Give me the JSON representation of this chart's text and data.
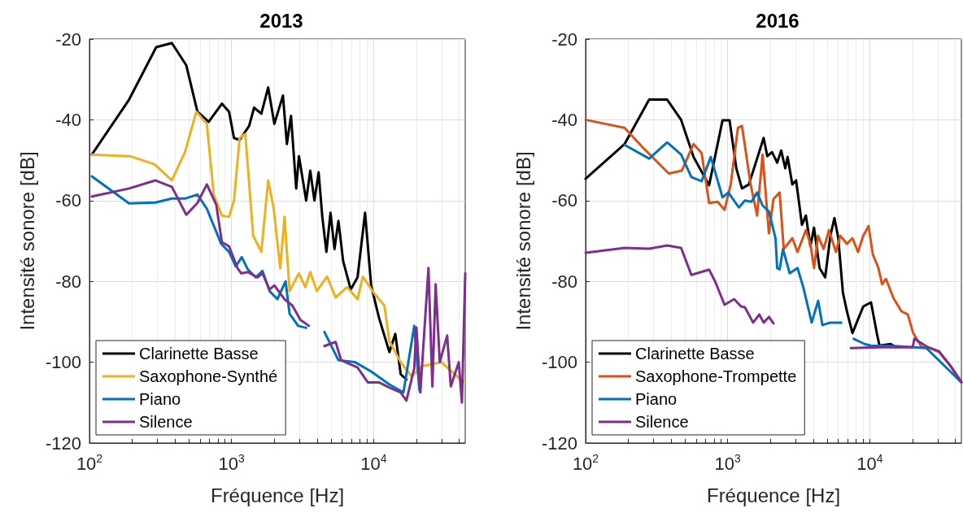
{
  "chart_data": [
    {
      "type": "line",
      "title": "2013",
      "xlabel": "Fréquence [Hz]",
      "ylabel": "Intensité sonore [dB]",
      "log": "x",
      "grid": true,
      "legend": "bottom left",
      "xlim": [
        100,
        44100
      ],
      "ylim": [
        -120,
        -20
      ],
      "xticks": [
        {
          "value": 100,
          "label": "10$^{2}$"
        },
        {
          "value": 200,
          "label": null
        },
        {
          "value": 300,
          "label": null
        },
        {
          "value": 400,
          "label": null
        },
        {
          "value": 500,
          "label": null
        },
        {
          "value": 600,
          "label": null
        },
        {
          "value": 700,
          "label": null
        },
        {
          "value": 800,
          "label": null
        },
        {
          "value": 900,
          "label": null
        },
        {
          "value": 1000,
          "label": "10$^{3}$"
        },
        {
          "value": 2000,
          "label": null
        },
        {
          "value": 3000,
          "label": null
        },
        {
          "value": 4000,
          "label": null
        },
        {
          "value": 5000,
          "label": null
        },
        {
          "value": 6000,
          "label": null
        },
        {
          "value": 7000,
          "label": null
        },
        {
          "value": 8000,
          "label": null
        },
        {
          "value": 9000,
          "label": null
        },
        {
          "value": 10000,
          "label": "10$^{4}$"
        },
        {
          "value": 20000,
          "label": null
        },
        {
          "value": 30000,
          "label": null
        },
        {
          "value": 40000,
          "label": null
        }
      ],
      "yticks": [
        -120,
        -100,
        -80,
        -60,
        -40,
        -20
      ],
      "series": [
        {
          "name": "Clarinette Basse",
          "color": "#000000",
          "x": [
            104,
            190,
            295,
            380,
            480,
            575,
            690,
            855,
            960,
            1040,
            1140,
            1330,
            1440,
            1620,
            1810,
            2000,
            2300,
            2450,
            2620,
            2850,
            2980,
            3350,
            3580,
            3830,
            4100,
            4350,
            4650,
            4970,
            5300,
            5650,
            6100,
            6900,
            7700,
            8700,
            9600,
            10900,
            12900,
            14200,
            15500,
            17000
          ],
          "values": [
            -48.6,
            -35,
            -22,
            -21,
            -26.5,
            -38,
            -40.5,
            -36,
            -38,
            -44.5,
            -45,
            -41.5,
            -37,
            -38.5,
            -32,
            -41,
            -34,
            -46,
            -39,
            -57,
            -49,
            -60,
            -52.6,
            -60,
            -53,
            -64,
            -72.7,
            -63,
            -72,
            -65,
            -75,
            -82,
            -79,
            -63,
            -81,
            -89,
            -97.5,
            -93,
            -103,
            -104.3
          ]
        },
        {
          "name": "Saxophone-Synthé",
          "color": "#edb120",
          "x": [
            104,
            193,
            287,
            380,
            470,
            565,
            670,
            750,
            855,
            960,
            1040,
            1140,
            1250,
            1420,
            1620,
            1810,
            1980,
            2200,
            2360,
            2560,
            2980,
            3300,
            3580,
            3980,
            4700,
            5400,
            6500,
            7700,
            8400,
            10000,
            11900,
            12900,
            15500,
            18500,
            22000,
            30000,
            40000,
            44100
          ],
          "values": [
            -48.6,
            -49,
            -51,
            -55,
            -48,
            -38,
            -41,
            -58.6,
            -63.7,
            -64,
            -60,
            -44.5,
            -43.5,
            -68.7,
            -72.7,
            -55,
            -62,
            -76.7,
            -64,
            -82.4,
            -78,
            -81.4,
            -77.7,
            -82.4,
            -78.8,
            -84,
            -81.4,
            -84.4,
            -78.8,
            -82.8,
            -86,
            -94.8,
            -100,
            -103.5,
            -101,
            -100,
            -104,
            -105
          ]
        },
        {
          "name": "Piano",
          "color": "#0072bd",
          "x": [
            104,
            190,
            290,
            380,
            470,
            575,
            670,
            845,
            960,
            1070,
            1180,
            1300,
            1480,
            1650,
            1850,
            2100,
            2400,
            2560,
            2940,
            3350,
            4000,
            4500,
            5650,
            7400,
            9600,
            12900,
            16200,
            19300,
            21000
          ],
          "values": [
            -54,
            -60.7,
            -60.5,
            -59.5,
            -59.5,
            -58.5,
            -62,
            -70.7,
            -72.7,
            -76.3,
            -74,
            -77,
            -79,
            -77.4,
            -82.4,
            -84.4,
            -80,
            -88,
            -91,
            -91.5,
            null,
            -92.5,
            -99.5,
            -100,
            -102.3,
            -105.5,
            -107.5,
            -91,
            -107
          ]
        },
        {
          "name": "Silence",
          "color": "#7e2f8e",
          "x": [
            104,
            190,
            290,
            380,
            480,
            575,
            670,
            780,
            855,
            960,
            1100,
            1170,
            1300,
            1520,
            1650,
            1850,
            2000,
            2360,
            2680,
            3050,
            3500,
            4000,
            4500,
            5400,
            5900,
            7700,
            9100,
            10900,
            12900,
            15500,
            17000,
            19300,
            20000,
            21300,
            24300,
            25900,
            27300,
            29200,
            32900,
            34900,
            39700,
            41800,
            44100
          ],
          "values": [
            -59,
            -57,
            -55,
            -56.6,
            -63.5,
            -60.6,
            -56,
            -61,
            -70.3,
            -71.3,
            -76.7,
            -78,
            -77.7,
            -79,
            -78,
            -82,
            -81,
            -84.4,
            -86,
            -89.5,
            -91,
            null,
            -96,
            -95,
            -99.5,
            -101.3,
            -105,
            -105,
            -106.3,
            -107.5,
            -109.5,
            -101.5,
            -91.4,
            -107.5,
            -76.7,
            -106,
            -80.7,
            -100,
            -93.4,
            -106,
            -100,
            -110,
            -78
          ]
        }
      ]
    },
    {
      "type": "line",
      "title": "2016",
      "xlabel": "Fréquence [Hz]",
      "ylabel": "Intensité sonore [dB]",
      "log": "x",
      "grid": true,
      "legend": "bottom left",
      "xlim": [
        100,
        44100
      ],
      "ylim": [
        -120,
        -20
      ],
      "xticks": [
        {
          "value": 100,
          "label": "10$^{2}$"
        },
        {
          "value": 200,
          "label": null
        },
        {
          "value": 300,
          "label": null
        },
        {
          "value": 400,
          "label": null
        },
        {
          "value": 500,
          "label": null
        },
        {
          "value": 600,
          "label": null
        },
        {
          "value": 700,
          "label": null
        },
        {
          "value": 800,
          "label": null
        },
        {
          "value": 900,
          "label": null
        },
        {
          "value": 1000,
          "label": "10$^{3}$"
        },
        {
          "value": 2000,
          "label": null
        },
        {
          "value": 3000,
          "label": null
        },
        {
          "value": 4000,
          "label": null
        },
        {
          "value": 5000,
          "label": null
        },
        {
          "value": 6000,
          "label": null
        },
        {
          "value": 7000,
          "label": null
        },
        {
          "value": 8000,
          "label": null
        },
        {
          "value": 9000,
          "label": null
        },
        {
          "value": 10000,
          "label": "10$^{4}$"
        },
        {
          "value": 20000,
          "label": null
        },
        {
          "value": 30000,
          "label": null
        },
        {
          "value": 40000,
          "label": null
        }
      ],
      "yticks": [
        -120,
        -100,
        -80,
        -60,
        -40,
        -20
      ],
      "series": [
        {
          "name": "Clarinette Basse",
          "color": "#000000",
          "x": [
            100,
            188,
            280,
            375,
            470,
            575,
            740,
            920,
            1030,
            1150,
            1260,
            1410,
            1790,
            1900,
            2050,
            2230,
            2380,
            2540,
            2640,
            2850,
            3030,
            3330,
            3550,
            3820,
            4050,
            4430,
            4850,
            5280,
            5640,
            6000,
            6470,
            6900,
            7550,
            8260,
            9000,
            10200,
            11200,
            11700,
            14000,
            15300
          ],
          "values": [
            -54.6,
            -46,
            -35,
            -35,
            -40,
            -49.2,
            -56.2,
            -40.1,
            -40.1,
            -52,
            -57,
            -56,
            -44.5,
            -49,
            -48,
            -50.6,
            -47.6,
            -52,
            -49.2,
            -56,
            -55,
            -66,
            -63.7,
            -71.3,
            -66.7,
            -76.7,
            -79,
            -68.7,
            -64.3,
            -69.3,
            -82.8,
            -87.4,
            -92.8,
            -89.4,
            -86.2,
            -85.2,
            -92.8,
            -95.9,
            -95.5,
            -96.3
          ]
        },
        {
          "name": "Saxophone-Trompette",
          "color": "#d95319",
          "x": [
            100,
            188,
            260,
            385,
            475,
            575,
            655,
            740,
            850,
            950,
            1050,
            1180,
            1260,
            1450,
            1610,
            1760,
            1950,
            2100,
            2320,
            2480,
            2850,
            3100,
            3550,
            3820,
            4050,
            4330,
            4730,
            5160,
            5770,
            6200,
            6900,
            7550,
            8260,
            9000,
            9800,
            10500,
            11500,
            12200,
            13000,
            14700,
            16700,
            18500,
            20200,
            23200,
            25600,
            30700,
            37000,
            44100
          ],
          "values": [
            -40,
            -42,
            -47.3,
            -53.3,
            -52.6,
            -46,
            -48.2,
            -60.6,
            -60.3,
            -62.3,
            -56,
            -42,
            -41.5,
            -56,
            -63.7,
            -48.6,
            -68.1,
            -59.6,
            -58,
            -72,
            -69.3,
            -72.7,
            -67.3,
            -70.7,
            -76.7,
            -68.7,
            -72,
            -67.3,
            -72.7,
            -68.7,
            -70.7,
            -69.3,
            -72.7,
            -68.7,
            -66.3,
            -73.3,
            -76.7,
            -80.7,
            -79.4,
            -84.2,
            -87.4,
            -88.2,
            -92.8,
            -96.3,
            -96.3,
            -97.5,
            -101,
            -105
          ]
        },
        {
          "name": "Piano",
          "color": "#0072bd",
          "x": [
            188,
            280,
            375,
            470,
            555,
            655,
            760,
            920,
            1010,
            1200,
            1320,
            1470,
            1610,
            1760,
            1950,
            2170,
            2230,
            2320,
            2450,
            2730,
            3100,
            3400,
            3900,
            4330,
            4640,
            5280,
            6300,
            7000,
            7700,
            9200,
            10200,
            15000,
            25000,
            44100
          ],
          "values": [
            -46.2,
            -49.6,
            -45.6,
            -48.6,
            -54.2,
            -55.2,
            -49.2,
            -59.2,
            -58,
            -61.7,
            -60,
            -60.3,
            -58,
            -61.2,
            -62.7,
            -69.3,
            -76.7,
            -77,
            -72,
            -78,
            -76.7,
            -81.4,
            -90.2,
            -84.8,
            -90.8,
            -90.2,
            -90.2,
            null,
            -94.2,
            -95.5,
            -95.9,
            -96,
            -96.5,
            -105
          ]
        },
        {
          "name": "Silence",
          "color": "#7e2f8e",
          "x": [
            100,
            188,
            280,
            375,
            470,
            555,
            740,
            820,
            950,
            1110,
            1240,
            1320,
            1510,
            1670,
            1790,
            1950,
            2100,
            3000,
            7350,
            11700,
            20000,
            20600,
            25600,
            30700,
            37000,
            44100
          ],
          "values": [
            -72.9,
            -71.7,
            -71.9,
            -71.1,
            -71.7,
            -78.4,
            -77.1,
            -80.2,
            -85.8,
            -84.4,
            -86.2,
            -86.4,
            -90.2,
            -88.2,
            -90.2,
            -88.8,
            -90.4,
            null,
            -96.5,
            -96.3,
            -96.3,
            -94.2,
            -96.3,
            -97.3,
            -100.9,
            -104.9
          ]
        }
      ]
    }
  ]
}
